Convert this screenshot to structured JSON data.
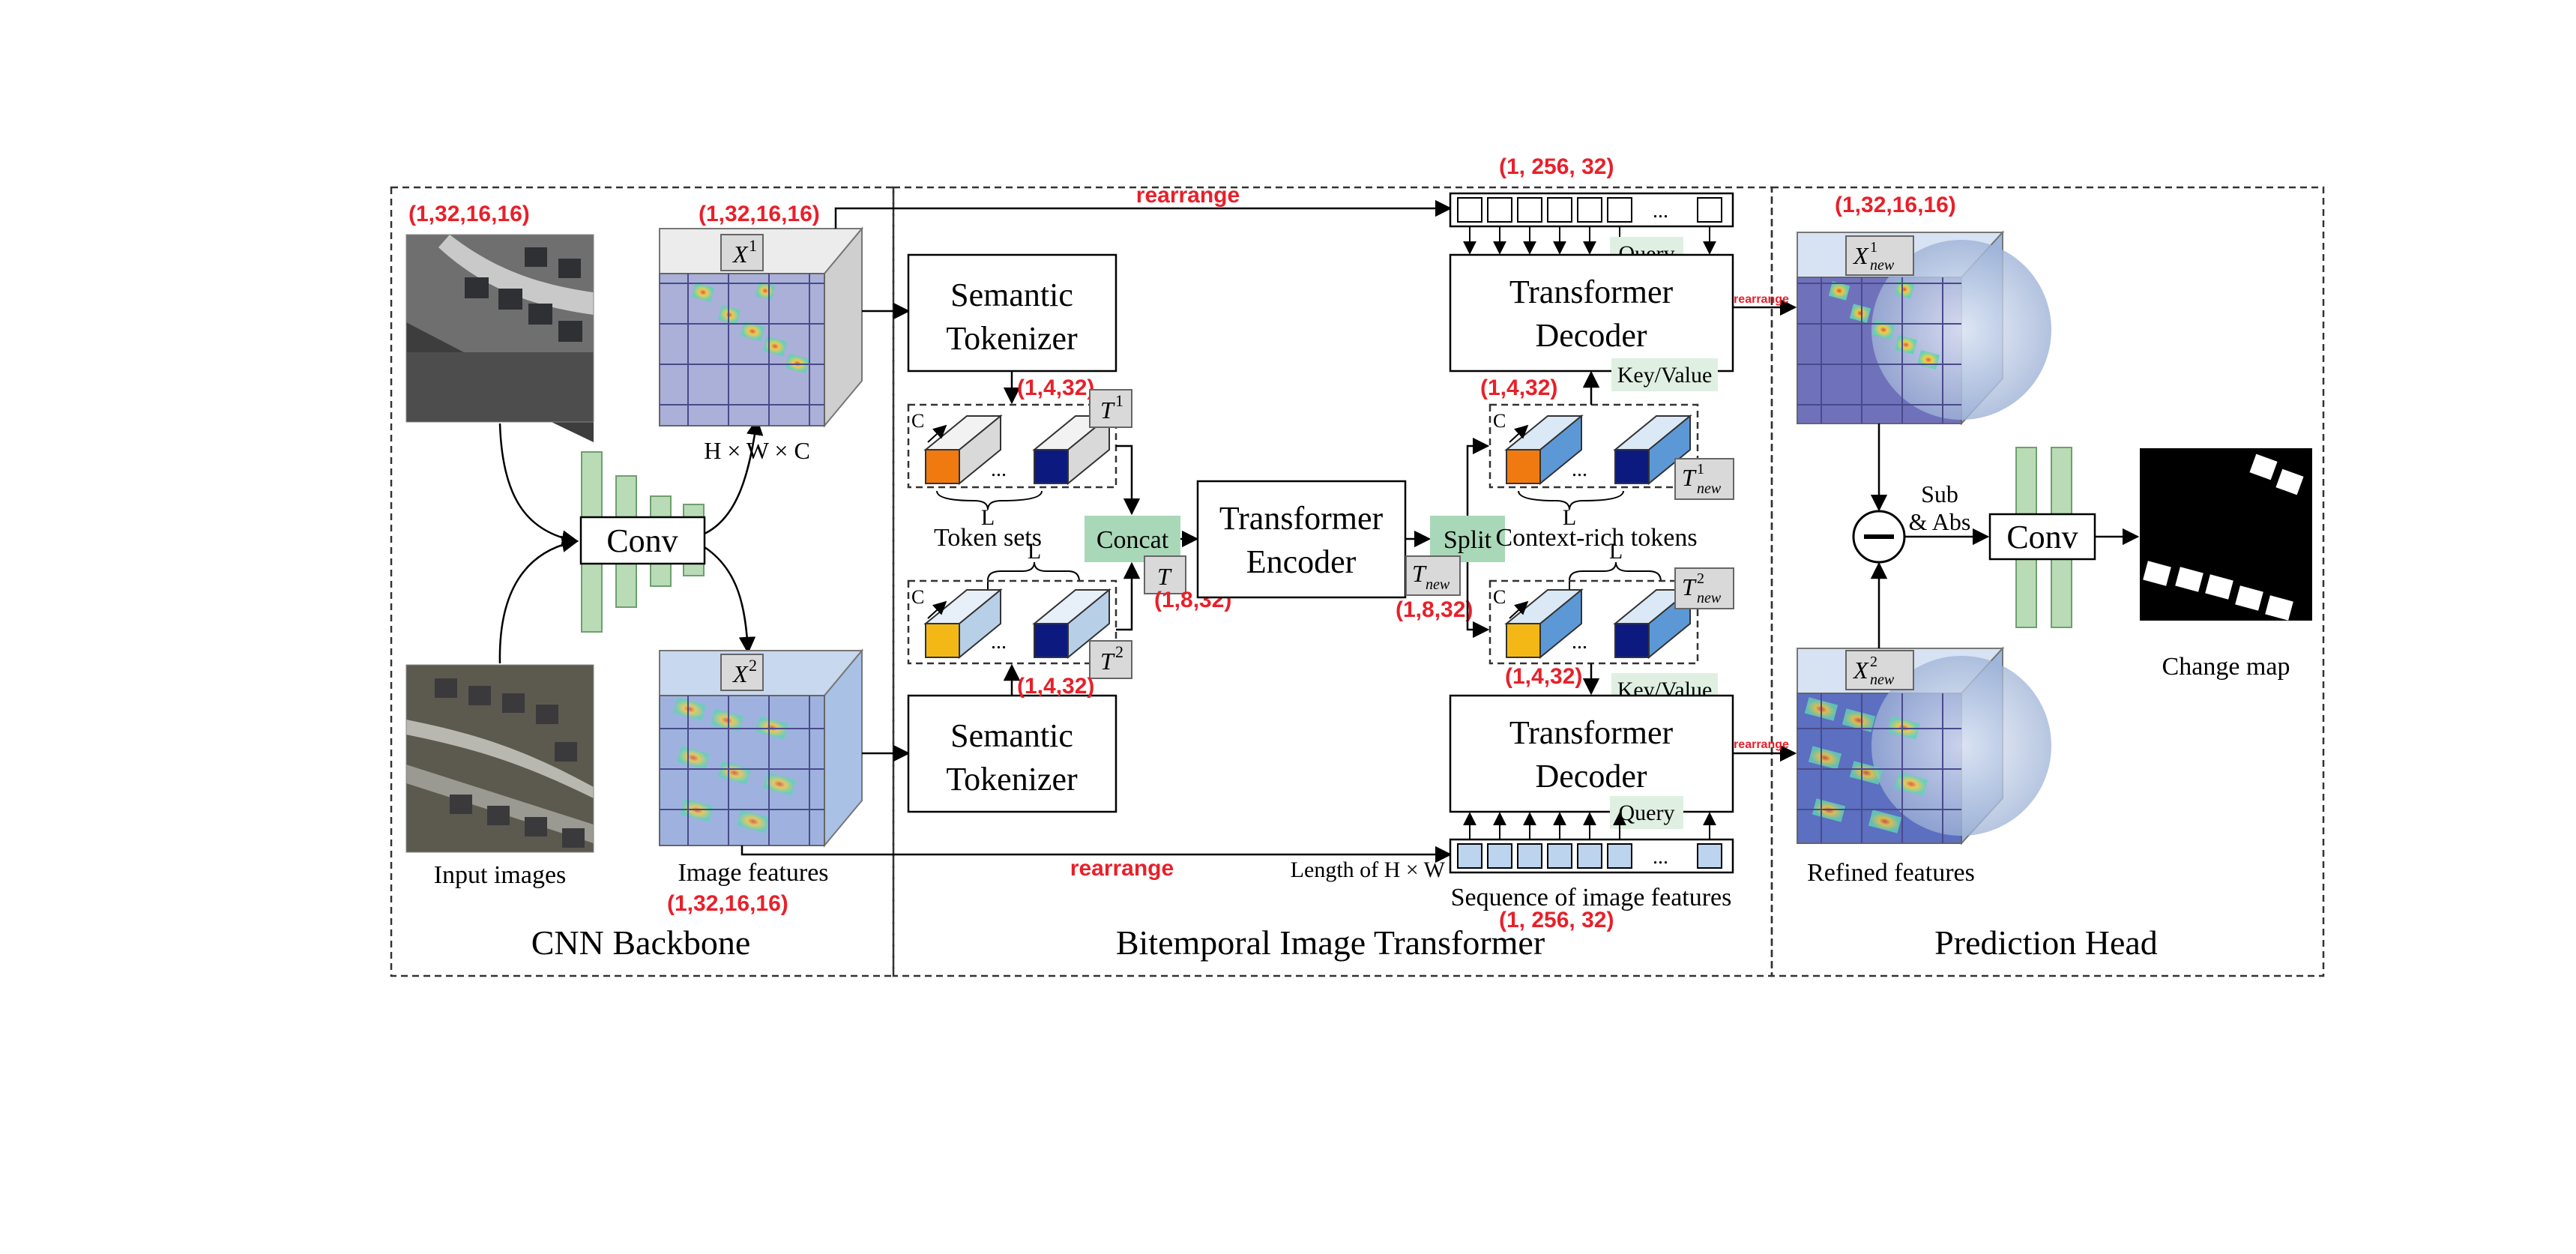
{
  "sections": {
    "cnn": "CNN Backbone",
    "bit": "Bitemporal Image Transformer",
    "head": "Prediction Head"
  },
  "labels": {
    "input_images": "Input images",
    "image_features": "Image features",
    "hwc": "H × W × C",
    "conv": "Conv",
    "conv2": "Conv",
    "semantic_tokenizer_line1": "Semantic",
    "semantic_tokenizer_line2": "Tokenizer",
    "token_sets": "Token sets",
    "concat": "Concat",
    "transformer_encoder_line1": "Transformer",
    "transformer_encoder_line2": "Encoder",
    "split": "Split",
    "context_rich": "Context-rich tokens",
    "transformer_decoder_line1": "Transformer",
    "transformer_decoder_line2": "Decoder",
    "query": "Query",
    "key_value": "Key/Value",
    "length_hw": "Length of H × W",
    "sequence": "Sequence of image features",
    "refined": "Refined features",
    "sub_abs_line1": "Sub",
    "sub_abs_line2": "& Abs",
    "change_map": "Change map",
    "rearrange": "rearrange",
    "L": "L",
    "C": "C",
    "dots": "..."
  },
  "dims": {
    "input": "(1,32,16,16)",
    "x1": "(1,32,16,16)",
    "x2": "(1,32,16,16)",
    "token1": "(1,4,32)",
    "token2": "(1,4,32)",
    "concat": "(1,8,32)",
    "split": "(1,8,32)",
    "new1": "(1,4,32)",
    "new2": "(1,4,32)",
    "seq_top": "(1, 256, 32)",
    "seq_bottom": "(1, 256, 32)",
    "refined": "(1,32,16,16)"
  },
  "symbols": {
    "x1_base": "X",
    "x1_sup": "1",
    "x2_base": "X",
    "x2_sup": "2",
    "t1_base": "T",
    "t1_sup": "1",
    "t2_base": "T",
    "t2_sup": "2",
    "t_base": "T",
    "tnew_base": "T",
    "tnew_sub": "new",
    "tnew1_base": "T",
    "tnew1_sup": "1",
    "tnew1_sub": "new",
    "tnew2_base": "T",
    "tnew2_sup": "2",
    "tnew2_sub": "new",
    "xnew1_base": "X",
    "xnew1_sup": "1",
    "xnew1_sub": "new",
    "xnew2_base": "X",
    "xnew2_sup": "2",
    "xnew2_sub": "new"
  },
  "colors": {
    "token_orange": "#f07a10",
    "token_navy": "#0c1a80",
    "token_gold": "#f3b815",
    "green_box": "#a9d8b8",
    "conv_bar": "#b9dbb6",
    "dim_red": "#e8202a"
  }
}
